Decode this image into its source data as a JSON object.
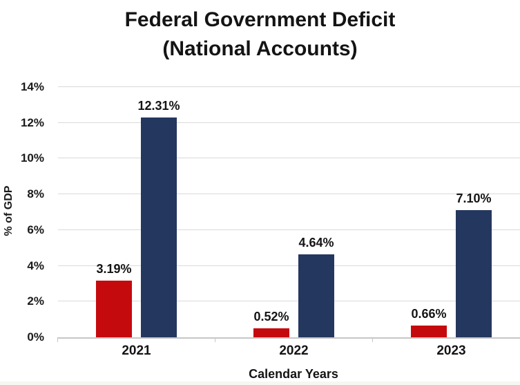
{
  "title": {
    "line1": "Federal Government Deficit",
    "line2": "(National Accounts)"
  },
  "chart_data": {
    "type": "bar",
    "title": "Federal Government Deficit (National Accounts)",
    "categories": [
      "2021",
      "2022",
      "2023"
    ],
    "series": [
      {
        "name": "deficit-red-series",
        "color": "#c50a0e",
        "values": [
          3.19,
          0.52,
          0.66
        ],
        "labels": [
          "3.19%",
          "0.52%",
          "0.66%"
        ]
      },
      {
        "name": "deficit-navy-series",
        "color": "#24375f",
        "values": [
          12.31,
          4.64,
          7.1
        ],
        "labels": [
          "12.31%",
          "4.64%",
          "7.10%"
        ]
      }
    ],
    "xlabel": "Calendar Years",
    "ylabel": "% of GDP",
    "ylim": [
      0,
      14
    ],
    "ytick_step": 2,
    "ytick_labels": [
      "0%",
      "2%",
      "4%",
      "6%",
      "8%",
      "10%",
      "12%",
      "14%"
    ],
    "grid": true,
    "gridline_color": "#d9d9d9",
    "axis_line_color": "#c6c6c6",
    "legend": "none",
    "text_color": "#141414"
  }
}
